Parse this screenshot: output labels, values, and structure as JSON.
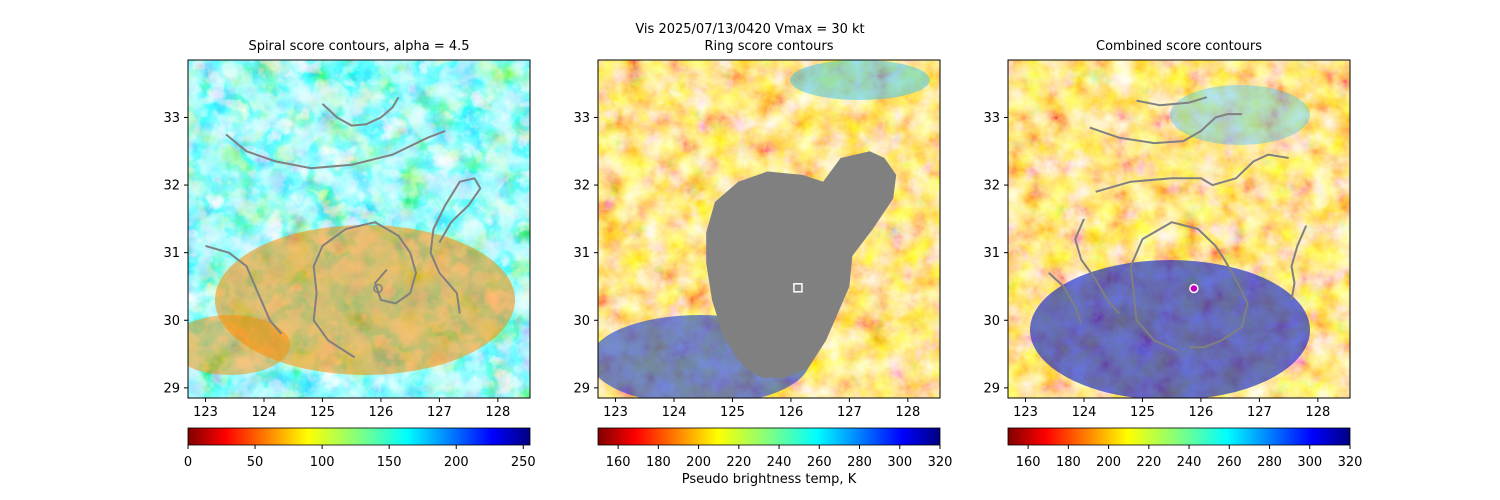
{
  "figure": {
    "suptitle": "Vis  2025/07/13/0420    Vmax = 30 kt",
    "colorbar_label": "Pseudo brightness temp, K"
  },
  "chart_data": [
    {
      "type": "heatmap",
      "title": "Spiral score contours, alpha =  4.5",
      "xlim": [
        122.7,
        128.55
      ],
      "ylim": [
        28.85,
        33.85
      ],
      "xticks": [
        123,
        124,
        125,
        126,
        127,
        128
      ],
      "yticks": [
        29,
        30,
        31,
        32,
        33
      ],
      "colormap": "jet_r",
      "colorbar": {
        "range": [
          0,
          255
        ],
        "ticks": [
          0,
          50,
          100,
          150,
          200,
          250
        ]
      },
      "center_marker": {
        "x": 125.95,
        "y": 30.47,
        "shape": "circle"
      },
      "contour_color": "#808080",
      "contours": [
        [
          [
            125.0,
            33.2
          ],
          [
            125.25,
            33.0
          ],
          [
            125.5,
            32.88
          ],
          [
            125.75,
            32.9
          ],
          [
            126.0,
            33.0
          ],
          [
            126.2,
            33.15
          ],
          [
            126.3,
            33.3
          ]
        ],
        [
          [
            123.35,
            32.75
          ],
          [
            123.7,
            32.5
          ],
          [
            124.2,
            32.35
          ],
          [
            124.8,
            32.25
          ],
          [
            125.5,
            32.3
          ],
          [
            126.2,
            32.45
          ],
          [
            126.8,
            32.7
          ],
          [
            127.1,
            32.8
          ]
        ],
        [
          [
            123.0,
            31.1
          ],
          [
            123.4,
            31.0
          ],
          [
            123.7,
            30.8
          ],
          [
            123.85,
            30.5
          ],
          [
            124.0,
            30.2
          ],
          [
            124.1,
            30.0
          ],
          [
            124.3,
            29.8
          ]
        ],
        [
          [
            125.55,
            29.45
          ],
          [
            125.1,
            29.7
          ],
          [
            124.85,
            30.0
          ],
          [
            124.9,
            30.4
          ],
          [
            124.85,
            30.8
          ],
          [
            125.0,
            31.1
          ],
          [
            125.4,
            31.35
          ],
          [
            125.9,
            31.45
          ],
          [
            126.3,
            31.25
          ],
          [
            126.5,
            31.0
          ],
          [
            126.6,
            30.7
          ],
          [
            126.5,
            30.4
          ],
          [
            126.25,
            30.25
          ],
          [
            126.0,
            30.3
          ],
          [
            125.9,
            30.55
          ],
          [
            126.1,
            30.75
          ]
        ],
        [
          [
            127.0,
            31.15
          ],
          [
            127.2,
            31.45
          ],
          [
            127.5,
            31.7
          ],
          [
            127.7,
            31.95
          ],
          [
            127.6,
            32.1
          ],
          [
            127.35,
            32.05
          ],
          [
            127.1,
            31.7
          ],
          [
            126.9,
            31.35
          ],
          [
            126.85,
            31.0
          ],
          [
            127.0,
            30.7
          ],
          [
            127.3,
            30.4
          ],
          [
            127.35,
            30.1
          ]
        ]
      ]
    },
    {
      "type": "heatmap",
      "title": "Ring score contours",
      "xlim": [
        122.7,
        128.55
      ],
      "ylim": [
        28.85,
        33.85
      ],
      "xticks": [
        123,
        124,
        125,
        126,
        127,
        128
      ],
      "yticks": [
        29,
        30,
        31,
        32,
        33
      ],
      "colormap": "jet_r",
      "colorbar": {
        "range": [
          150,
          320
        ],
        "ticks": [
          160,
          180,
          200,
          220,
          240,
          260,
          280,
          300,
          320
        ]
      },
      "center_marker": {
        "x": 126.12,
        "y": 30.48,
        "shape": "square"
      },
      "masked_region_color": "#808080",
      "masked_region": [
        [
          124.55,
          31.3
        ],
        [
          124.7,
          31.75
        ],
        [
          125.1,
          32.05
        ],
        [
          125.6,
          32.2
        ],
        [
          126.2,
          32.15
        ],
        [
          126.55,
          32.05
        ],
        [
          126.85,
          32.4
        ],
        [
          127.35,
          32.5
        ],
        [
          127.6,
          32.4
        ],
        [
          127.8,
          32.15
        ],
        [
          127.75,
          31.8
        ],
        [
          127.4,
          31.35
        ],
        [
          127.05,
          30.95
        ],
        [
          127.0,
          30.5
        ],
        [
          126.8,
          30.1
        ],
        [
          126.6,
          29.7
        ],
        [
          126.3,
          29.3
        ],
        [
          125.9,
          29.15
        ],
        [
          125.5,
          29.15
        ],
        [
          125.15,
          29.35
        ],
        [
          124.85,
          29.75
        ],
        [
          124.65,
          30.3
        ],
        [
          124.55,
          30.85
        ]
      ]
    },
    {
      "type": "heatmap",
      "title": "Combined score contours",
      "xlim": [
        122.7,
        128.55
      ],
      "ylim": [
        28.85,
        33.85
      ],
      "xticks": [
        123,
        124,
        125,
        126,
        127,
        128
      ],
      "yticks": [
        29,
        30,
        31,
        32,
        33
      ],
      "colormap": "jet_r",
      "colorbar": {
        "range": [
          150,
          320
        ],
        "ticks": [
          160,
          180,
          200,
          220,
          240,
          260,
          280,
          300,
          320
        ]
      },
      "center_marker": {
        "x": 125.88,
        "y": 30.47,
        "shape": "circle"
      },
      "contour_color": "#808080",
      "contours": [
        [
          [
            124.9,
            33.25
          ],
          [
            125.3,
            33.18
          ],
          [
            125.8,
            33.22
          ],
          [
            126.1,
            33.3
          ]
        ],
        [
          [
            124.1,
            32.85
          ],
          [
            124.6,
            32.7
          ],
          [
            125.2,
            32.62
          ],
          [
            125.7,
            32.65
          ],
          [
            126.0,
            32.8
          ],
          [
            126.25,
            33.0
          ],
          [
            126.45,
            33.05
          ],
          [
            126.7,
            33.05
          ]
        ],
        [
          [
            124.2,
            31.9
          ],
          [
            124.8,
            32.05
          ],
          [
            125.5,
            32.1
          ],
          [
            126.0,
            32.1
          ],
          [
            126.2,
            32.0
          ],
          [
            126.6,
            32.1
          ],
          [
            126.9,
            32.35
          ],
          [
            127.15,
            32.45
          ],
          [
            127.5,
            32.4
          ]
        ],
        [
          [
            123.4,
            30.7
          ],
          [
            123.65,
            30.5
          ],
          [
            123.85,
            30.2
          ],
          [
            123.95,
            29.95
          ]
        ],
        [
          [
            125.6,
            29.55
          ],
          [
            125.2,
            29.7
          ],
          [
            124.9,
            30.0
          ],
          [
            124.85,
            30.4
          ],
          [
            124.8,
            30.8
          ],
          [
            125.0,
            31.2
          ],
          [
            125.5,
            31.45
          ],
          [
            125.95,
            31.35
          ],
          [
            126.25,
            31.1
          ],
          [
            126.4,
            30.9
          ],
          [
            126.6,
            30.6
          ],
          [
            126.8,
            30.25
          ],
          [
            126.7,
            29.9
          ],
          [
            126.35,
            29.7
          ],
          [
            126.05,
            29.6
          ],
          [
            125.8,
            29.6
          ]
        ],
        [
          [
            124.0,
            31.5
          ],
          [
            123.85,
            31.2
          ],
          [
            123.95,
            30.9
          ],
          [
            124.2,
            30.6
          ],
          [
            124.4,
            30.3
          ],
          [
            124.6,
            30.1
          ]
        ],
        [
          [
            127.8,
            31.4
          ],
          [
            127.65,
            31.1
          ],
          [
            127.55,
            30.8
          ],
          [
            127.6,
            30.55
          ],
          [
            127.55,
            30.3
          ]
        ]
      ]
    }
  ]
}
